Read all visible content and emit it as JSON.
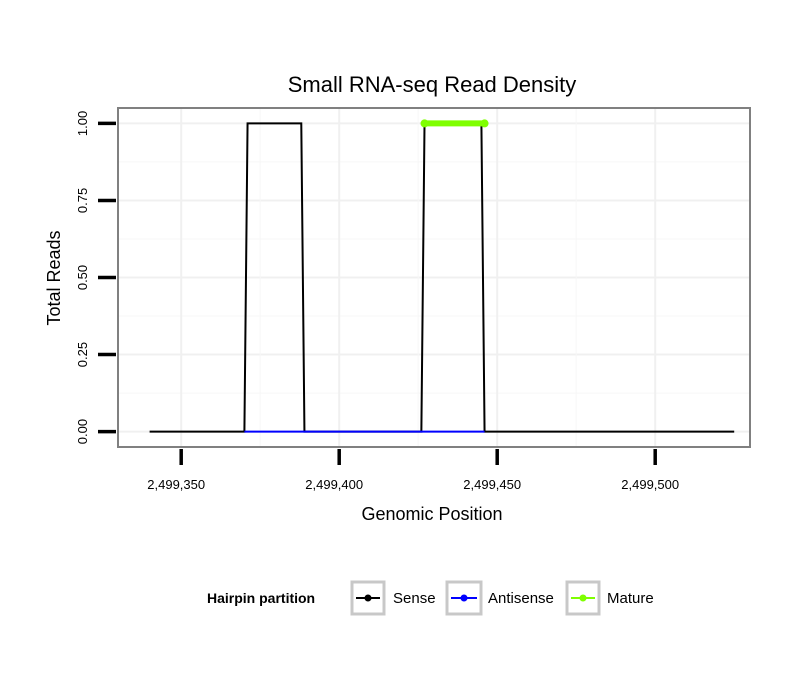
{
  "chart_data": {
    "type": "line",
    "title": "Small RNA-seq Read Density",
    "xlabel": "Genomic Position",
    "ylabel": "Total Reads",
    "xlim": [
      2499330,
      2499530
    ],
    "ylim": [
      -0.05,
      1.05
    ],
    "x_ticks": [
      2499350,
      2499400,
      2499450,
      2499500
    ],
    "x_tick_labels": [
      "2,499,350",
      "2,499,400",
      "2,499,450",
      "2,499,500"
    ],
    "y_ticks": [
      0,
      0.25,
      0.5,
      0.75,
      1.0
    ],
    "y_tick_labels": [
      "0.00",
      "0.25",
      "0.50",
      "0.75",
      "1.00"
    ],
    "grid": true,
    "legend": {
      "title": "Hairpin partition",
      "placement": "bottom",
      "entries": [
        "Sense",
        "Antisense",
        "Mature"
      ]
    },
    "series": [
      {
        "name": "Sense",
        "color": "#000000",
        "points": [
          [
            2499340,
            0
          ],
          [
            2499370,
            0
          ],
          [
            2499371,
            1
          ],
          [
            2499388,
            1
          ],
          [
            2499389,
            0
          ],
          [
            2499426,
            0
          ],
          [
            2499427,
            1
          ],
          [
            2499445,
            1
          ],
          [
            2499446,
            0
          ],
          [
            2499525,
            0
          ]
        ]
      },
      {
        "name": "Antisense",
        "color": "#0000ff",
        "points": [
          [
            2499370,
            0
          ],
          [
            2499389,
            0
          ],
          [
            2499426,
            0
          ],
          [
            2499446,
            0
          ]
        ]
      },
      {
        "name": "Mature",
        "color": "#7fff00",
        "points": [
          [
            2499427,
            1
          ],
          [
            2499446,
            1
          ]
        ]
      }
    ]
  }
}
